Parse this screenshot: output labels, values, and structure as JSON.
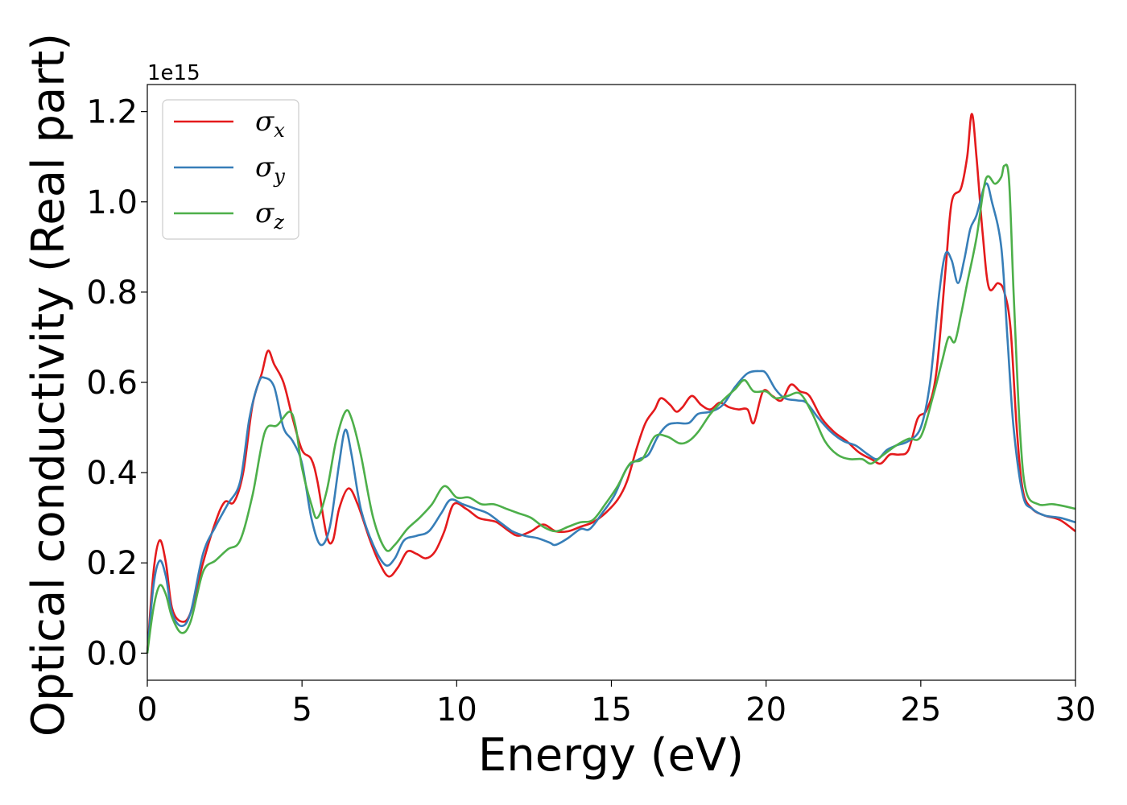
{
  "chart_data": {
    "type": "line",
    "title": "",
    "xlabel": "Energy (eV)",
    "ylabel": "Optical conductivity (Real part)",
    "y_offset_label": "1e15",
    "xlim": [
      0,
      30
    ],
    "ylim": [
      -0.06,
      1.26
    ],
    "xticks": [
      0,
      5,
      10,
      15,
      20,
      25,
      30
    ],
    "xtick_labels": [
      "0",
      "5",
      "10",
      "15",
      "20",
      "25",
      "30"
    ],
    "yticks": [
      0.0,
      0.2,
      0.4,
      0.6,
      0.8,
      1.0,
      1.2
    ],
    "ytick_labels": [
      "0.0",
      "0.2",
      "0.4",
      "0.6",
      "0.8",
      "1.0",
      "1.2"
    ],
    "grid": false,
    "legend_position": "top-left",
    "series": [
      {
        "name": "σx",
        "name_base": "σ",
        "name_sub": "x",
        "color": "#e41a1c",
        "points": [
          [
            0,
            0.0
          ],
          [
            0.2,
            0.18
          ],
          [
            0.4,
            0.25
          ],
          [
            0.6,
            0.2
          ],
          [
            0.8,
            0.1
          ],
          [
            1.1,
            0.07
          ],
          [
            1.4,
            0.09
          ],
          [
            1.8,
            0.2
          ],
          [
            2.2,
            0.29
          ],
          [
            2.5,
            0.335
          ],
          [
            2.8,
            0.335
          ],
          [
            3.1,
            0.4
          ],
          [
            3.4,
            0.55
          ],
          [
            3.7,
            0.62
          ],
          [
            3.9,
            0.67
          ],
          [
            4.1,
            0.64
          ],
          [
            4.4,
            0.6
          ],
          [
            4.7,
            0.52
          ],
          [
            5.0,
            0.45
          ],
          [
            5.3,
            0.43
          ],
          [
            5.5,
            0.38
          ],
          [
            5.8,
            0.26
          ],
          [
            6.0,
            0.25
          ],
          [
            6.2,
            0.32
          ],
          [
            6.5,
            0.365
          ],
          [
            6.8,
            0.33
          ],
          [
            7.2,
            0.25
          ],
          [
            7.5,
            0.2
          ],
          [
            7.8,
            0.17
          ],
          [
            8.1,
            0.19
          ],
          [
            8.4,
            0.225
          ],
          [
            8.7,
            0.22
          ],
          [
            9.0,
            0.21
          ],
          [
            9.3,
            0.225
          ],
          [
            9.6,
            0.27
          ],
          [
            9.9,
            0.33
          ],
          [
            10.3,
            0.32
          ],
          [
            10.7,
            0.3
          ],
          [
            11.0,
            0.295
          ],
          [
            11.3,
            0.29
          ],
          [
            11.7,
            0.27
          ],
          [
            12.0,
            0.26
          ],
          [
            12.4,
            0.27
          ],
          [
            12.8,
            0.285
          ],
          [
            13.2,
            0.27
          ],
          [
            13.6,
            0.27
          ],
          [
            14.0,
            0.28
          ],
          [
            14.4,
            0.29
          ],
          [
            14.8,
            0.31
          ],
          [
            15.2,
            0.34
          ],
          [
            15.5,
            0.38
          ],
          [
            15.8,
            0.45
          ],
          [
            16.1,
            0.51
          ],
          [
            16.4,
            0.54
          ],
          [
            16.6,
            0.565
          ],
          [
            16.9,
            0.55
          ],
          [
            17.1,
            0.535
          ],
          [
            17.3,
            0.545
          ],
          [
            17.6,
            0.57
          ],
          [
            17.9,
            0.55
          ],
          [
            18.2,
            0.54
          ],
          [
            18.5,
            0.555
          ],
          [
            18.8,
            0.545
          ],
          [
            19.1,
            0.54
          ],
          [
            19.4,
            0.54
          ],
          [
            19.6,
            0.51
          ],
          [
            19.9,
            0.58
          ],
          [
            20.2,
            0.57
          ],
          [
            20.5,
            0.56
          ],
          [
            20.8,
            0.595
          ],
          [
            21.1,
            0.58
          ],
          [
            21.4,
            0.57
          ],
          [
            21.8,
            0.52
          ],
          [
            22.2,
            0.49
          ],
          [
            22.6,
            0.47
          ],
          [
            23.0,
            0.445
          ],
          [
            23.4,
            0.43
          ],
          [
            23.7,
            0.42
          ],
          [
            24.0,
            0.44
          ],
          [
            24.3,
            0.44
          ],
          [
            24.6,
            0.45
          ],
          [
            24.9,
            0.52
          ],
          [
            25.2,
            0.54
          ],
          [
            25.5,
            0.62
          ],
          [
            25.8,
            0.85
          ],
          [
            26.0,
            1.0
          ],
          [
            26.3,
            1.03
          ],
          [
            26.5,
            1.1
          ],
          [
            26.65,
            1.195
          ],
          [
            26.8,
            1.1
          ],
          [
            27.0,
            0.93
          ],
          [
            27.2,
            0.81
          ],
          [
            27.5,
            0.82
          ],
          [
            27.7,
            0.8
          ],
          [
            27.9,
            0.72
          ],
          [
            28.1,
            0.5
          ],
          [
            28.3,
            0.36
          ],
          [
            28.6,
            0.32
          ],
          [
            29.0,
            0.305
          ],
          [
            29.5,
            0.295
          ],
          [
            30.0,
            0.27
          ]
        ]
      },
      {
        "name": "σy",
        "name_base": "σ",
        "name_sub": "y",
        "color": "#377eb8",
        "points": [
          [
            0,
            0.0
          ],
          [
            0.2,
            0.15
          ],
          [
            0.4,
            0.205
          ],
          [
            0.6,
            0.17
          ],
          [
            0.8,
            0.09
          ],
          [
            1.1,
            0.06
          ],
          [
            1.4,
            0.09
          ],
          [
            1.8,
            0.22
          ],
          [
            2.2,
            0.28
          ],
          [
            2.6,
            0.33
          ],
          [
            3.0,
            0.38
          ],
          [
            3.3,
            0.52
          ],
          [
            3.6,
            0.6
          ],
          [
            3.8,
            0.61
          ],
          [
            4.1,
            0.59
          ],
          [
            4.4,
            0.5
          ],
          [
            4.7,
            0.47
          ],
          [
            5.0,
            0.42
          ],
          [
            5.3,
            0.3
          ],
          [
            5.6,
            0.24
          ],
          [
            5.9,
            0.28
          ],
          [
            6.2,
            0.42
          ],
          [
            6.4,
            0.495
          ],
          [
            6.6,
            0.44
          ],
          [
            6.9,
            0.32
          ],
          [
            7.3,
            0.24
          ],
          [
            7.7,
            0.195
          ],
          [
            8.0,
            0.21
          ],
          [
            8.3,
            0.25
          ],
          [
            8.7,
            0.26
          ],
          [
            9.1,
            0.27
          ],
          [
            9.5,
            0.31
          ],
          [
            9.8,
            0.34
          ],
          [
            10.2,
            0.33
          ],
          [
            10.6,
            0.32
          ],
          [
            11.0,
            0.31
          ],
          [
            11.4,
            0.29
          ],
          [
            11.8,
            0.27
          ],
          [
            12.2,
            0.26
          ],
          [
            12.6,
            0.255
          ],
          [
            13.0,
            0.245
          ],
          [
            13.2,
            0.24
          ],
          [
            13.6,
            0.255
          ],
          [
            14.0,
            0.275
          ],
          [
            14.3,
            0.275
          ],
          [
            14.7,
            0.31
          ],
          [
            15.1,
            0.35
          ],
          [
            15.5,
            0.41
          ],
          [
            15.9,
            0.43
          ],
          [
            16.2,
            0.44
          ],
          [
            16.5,
            0.48
          ],
          [
            16.8,
            0.505
          ],
          [
            17.1,
            0.51
          ],
          [
            17.5,
            0.51
          ],
          [
            17.8,
            0.53
          ],
          [
            18.2,
            0.535
          ],
          [
            18.6,
            0.55
          ],
          [
            19.0,
            0.59
          ],
          [
            19.4,
            0.62
          ],
          [
            19.8,
            0.625
          ],
          [
            20.0,
            0.62
          ],
          [
            20.3,
            0.585
          ],
          [
            20.6,
            0.565
          ],
          [
            21.0,
            0.56
          ],
          [
            21.3,
            0.555
          ],
          [
            21.7,
            0.52
          ],
          [
            22.1,
            0.49
          ],
          [
            22.5,
            0.47
          ],
          [
            22.9,
            0.46
          ],
          [
            23.3,
            0.44
          ],
          [
            23.6,
            0.43
          ],
          [
            23.9,
            0.45
          ],
          [
            24.2,
            0.46
          ],
          [
            24.6,
            0.47
          ],
          [
            25.0,
            0.5
          ],
          [
            25.3,
            0.6
          ],
          [
            25.6,
            0.8
          ],
          [
            25.8,
            0.885
          ],
          [
            26.0,
            0.87
          ],
          [
            26.2,
            0.82
          ],
          [
            26.4,
            0.87
          ],
          [
            26.6,
            0.94
          ],
          [
            26.8,
            0.97
          ],
          [
            27.1,
            1.04
          ],
          [
            27.3,
            1.0
          ],
          [
            27.6,
            0.9
          ],
          [
            27.8,
            0.7
          ],
          [
            28.0,
            0.5
          ],
          [
            28.3,
            0.35
          ],
          [
            28.6,
            0.32
          ],
          [
            29.0,
            0.305
          ],
          [
            29.5,
            0.3
          ],
          [
            30.0,
            0.29
          ]
        ]
      },
      {
        "name": "σz",
        "name_base": "σ",
        "name_sub": "z",
        "color": "#4daf4a",
        "points": [
          [
            0,
            0.0
          ],
          [
            0.2,
            0.1
          ],
          [
            0.4,
            0.15
          ],
          [
            0.6,
            0.13
          ],
          [
            0.8,
            0.08
          ],
          [
            1.1,
            0.045
          ],
          [
            1.4,
            0.07
          ],
          [
            1.8,
            0.18
          ],
          [
            2.2,
            0.205
          ],
          [
            2.6,
            0.23
          ],
          [
            3.0,
            0.25
          ],
          [
            3.4,
            0.35
          ],
          [
            3.8,
            0.49
          ],
          [
            4.2,
            0.505
          ],
          [
            4.6,
            0.535
          ],
          [
            4.8,
            0.5
          ],
          [
            5.0,
            0.41
          ],
          [
            5.3,
            0.33
          ],
          [
            5.5,
            0.3
          ],
          [
            5.8,
            0.36
          ],
          [
            6.1,
            0.47
          ],
          [
            6.4,
            0.535
          ],
          [
            6.6,
            0.52
          ],
          [
            6.9,
            0.44
          ],
          [
            7.3,
            0.3
          ],
          [
            7.7,
            0.23
          ],
          [
            8.0,
            0.24
          ],
          [
            8.4,
            0.275
          ],
          [
            8.8,
            0.3
          ],
          [
            9.2,
            0.33
          ],
          [
            9.6,
            0.37
          ],
          [
            10.0,
            0.345
          ],
          [
            10.4,
            0.345
          ],
          [
            10.8,
            0.33
          ],
          [
            11.2,
            0.33
          ],
          [
            11.6,
            0.32
          ],
          [
            12.0,
            0.31
          ],
          [
            12.4,
            0.3
          ],
          [
            12.8,
            0.28
          ],
          [
            13.2,
            0.27
          ],
          [
            13.6,
            0.28
          ],
          [
            14.0,
            0.29
          ],
          [
            14.4,
            0.295
          ],
          [
            14.8,
            0.33
          ],
          [
            15.2,
            0.37
          ],
          [
            15.6,
            0.42
          ],
          [
            16.0,
            0.43
          ],
          [
            16.4,
            0.48
          ],
          [
            16.8,
            0.48
          ],
          [
            17.2,
            0.465
          ],
          [
            17.5,
            0.47
          ],
          [
            17.8,
            0.49
          ],
          [
            18.2,
            0.53
          ],
          [
            18.6,
            0.56
          ],
          [
            19.0,
            0.585
          ],
          [
            19.3,
            0.605
          ],
          [
            19.6,
            0.58
          ],
          [
            20.0,
            0.58
          ],
          [
            20.3,
            0.565
          ],
          [
            20.7,
            0.57
          ],
          [
            21.1,
            0.575
          ],
          [
            21.5,
            0.53
          ],
          [
            21.9,
            0.47
          ],
          [
            22.3,
            0.44
          ],
          [
            22.7,
            0.43
          ],
          [
            23.1,
            0.43
          ],
          [
            23.4,
            0.42
          ],
          [
            23.8,
            0.44
          ],
          [
            24.2,
            0.46
          ],
          [
            24.6,
            0.475
          ],
          [
            25.0,
            0.48
          ],
          [
            25.4,
            0.57
          ],
          [
            25.7,
            0.65
          ],
          [
            25.9,
            0.7
          ],
          [
            26.1,
            0.69
          ],
          [
            26.3,
            0.75
          ],
          [
            26.5,
            0.82
          ],
          [
            26.8,
            0.92
          ],
          [
            27.1,
            1.05
          ],
          [
            27.4,
            1.04
          ],
          [
            27.6,
            1.055
          ],
          [
            27.7,
            1.08
          ],
          [
            27.85,
            1.05
          ],
          [
            28.0,
            0.8
          ],
          [
            28.2,
            0.5
          ],
          [
            28.4,
            0.36
          ],
          [
            28.8,
            0.33
          ],
          [
            29.3,
            0.33
          ],
          [
            30.0,
            0.32
          ]
        ]
      }
    ]
  }
}
